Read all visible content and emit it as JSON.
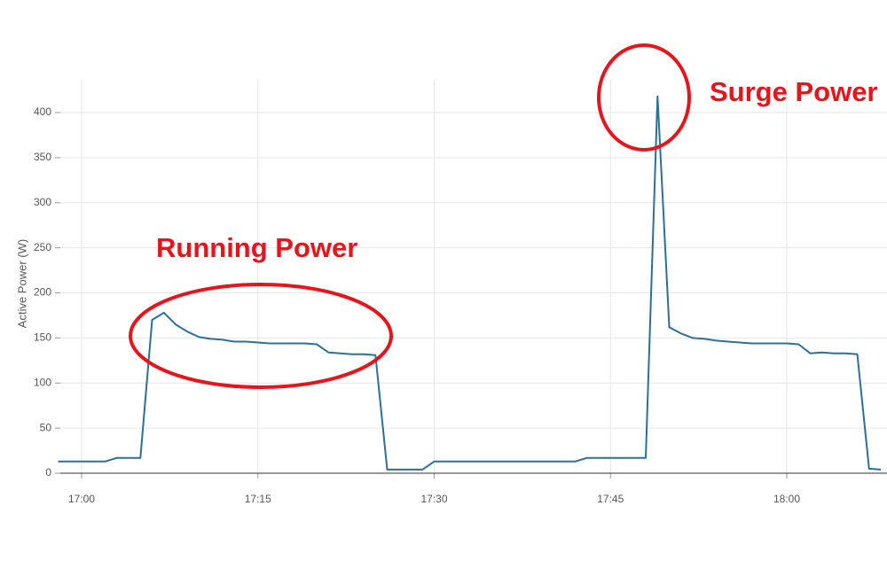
{
  "chart_data": {
    "type": "line",
    "y_label": "Active Power (W)",
    "annotations": [
      "Running Power",
      "Surge Power"
    ],
    "color": "#2b6f9f",
    "grid": true,
    "x": [
      "16:58",
      "17:02",
      "17:03",
      "17:05",
      "17:06",
      "17:07",
      "17:08",
      "17:09",
      "17:10",
      "17:11",
      "17:12",
      "17:13",
      "17:14",
      "17:15",
      "17:16",
      "17:17",
      "17:18",
      "17:19",
      "17:20",
      "17:21",
      "17:22",
      "17:23",
      "17:24",
      "17:25",
      "17:26",
      "17:27",
      "17:28",
      "17:29",
      "17:30",
      "17:42",
      "17:43",
      "17:48",
      "17:49",
      "17:50",
      "17:51",
      "17:52",
      "17:53",
      "17:54",
      "17:55",
      "17:56",
      "17:57",
      "17:58",
      "17:59",
      "18:00",
      "18:01",
      "18:02",
      "18:03",
      "18:04",
      "18:05",
      "18:06",
      "18:07",
      "18:08"
    ],
    "values": [
      13,
      13,
      17,
      17,
      170,
      178,
      165,
      157,
      151,
      149,
      148,
      146,
      146,
      145,
      144,
      144,
      144,
      144,
      143,
      134,
      133,
      132,
      132,
      131,
      4,
      4,
      4,
      4,
      13,
      13,
      17,
      17,
      418,
      162,
      155,
      150,
      149,
      147,
      146,
      145,
      144,
      144,
      144,
      144,
      143,
      133,
      134,
      133,
      133,
      132,
      5,
      4
    ],
    "xlim": [
      "16:58",
      "18:08"
    ],
    "xticks": [
      "17:00",
      "17:15",
      "17:30",
      "17:45",
      "18:00"
    ],
    "ylim": [
      0,
      430
    ],
    "yticks": [
      0,
      50,
      100,
      150,
      200,
      250,
      300,
      350,
      400
    ]
  }
}
